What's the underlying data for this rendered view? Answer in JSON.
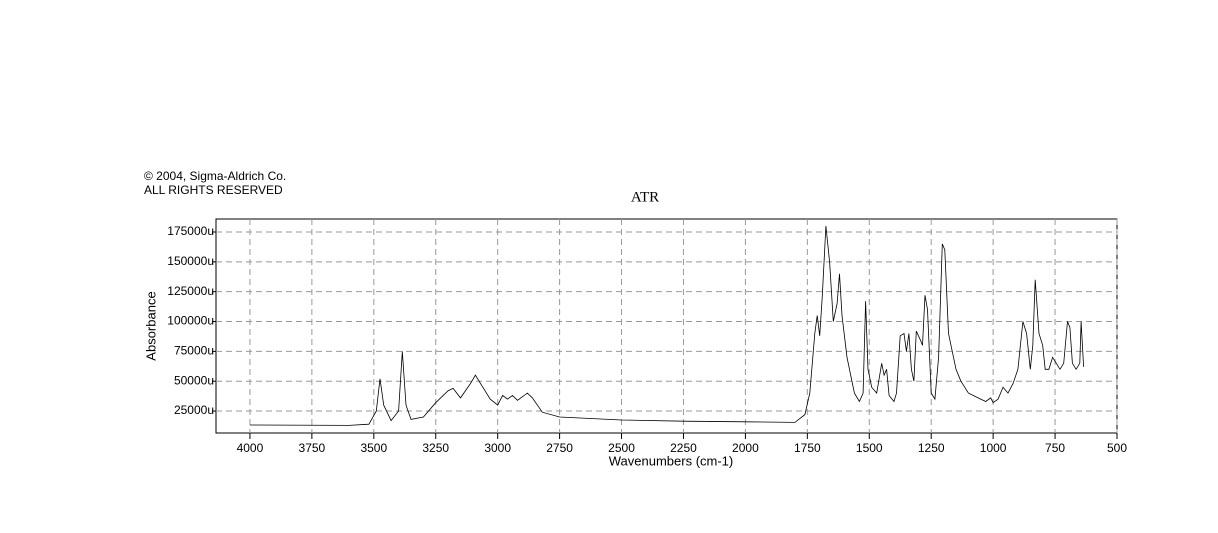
{
  "notice": [
    "© 2004, Sigma-Aldrich Co.",
    "ALL RIGHTS RESERVED"
  ],
  "chart_data": {
    "type": "line",
    "title": "ATR",
    "xlabel": "Wavenumbers (cm-1)",
    "ylabel": "Absorbance",
    "xlim": [
      4137,
      500
    ],
    "ylim": [
      6600,
      185900
    ],
    "xticks": [
      4000,
      3750,
      3500,
      3250,
      3000,
      2750,
      2500,
      2250,
      2000,
      1750,
      1500,
      1250,
      1000,
      750,
      500
    ],
    "yticks": [
      {
        "value": 25000,
        "label": "25000u"
      },
      {
        "value": 50000,
        "label": "50000u"
      },
      {
        "value": 75000,
        "label": "75000u"
      },
      {
        "value": 100000,
        "label": "100000u"
      },
      {
        "value": 125000,
        "label": "125000u"
      },
      {
        "value": 150000,
        "label": "150000u"
      },
      {
        "value": 175000,
        "label": "175000u"
      }
    ],
    "grid": true,
    "series": [
      {
        "color": "#000000",
        "x": [
          4000,
          3600,
          3520,
          3490,
          3475,
          3460,
          3430,
          3400,
          3385,
          3370,
          3350,
          3300,
          3250,
          3200,
          3180,
          3150,
          3110,
          3090,
          3060,
          3030,
          3000,
          2980,
          2960,
          2940,
          2920,
          2880,
          2860,
          2820,
          2750,
          2500,
          2250,
          2000,
          1800,
          1760,
          1740,
          1720,
          1710,
          1700,
          1690,
          1675,
          1660,
          1645,
          1630,
          1620,
          1610,
          1590,
          1560,
          1540,
          1525,
          1515,
          1505,
          1490,
          1470,
          1450,
          1440,
          1430,
          1420,
          1400,
          1390,
          1375,
          1360,
          1350,
          1340,
          1330,
          1320,
          1310,
          1295,
          1285,
          1275,
          1265,
          1250,
          1235,
          1220,
          1205,
          1195,
          1180,
          1170,
          1150,
          1130,
          1100,
          1080,
          1050,
          1030,
          1010,
          1000,
          980,
          960,
          940,
          920,
          900,
          880,
          865,
          850,
          840,
          830,
          815,
          800,
          790,
          775,
          760,
          745,
          730,
          715,
          700,
          690,
          680,
          665,
          650,
          645,
          635
        ],
        "values": [
          13300,
          13000,
          14000,
          25000,
          52000,
          30000,
          17000,
          25000,
          75000,
          30000,
          18000,
          20000,
          32000,
          42000,
          44000,
          36000,
          48000,
          55000,
          45000,
          35000,
          30000,
          38000,
          35000,
          38000,
          34000,
          40000,
          36000,
          24000,
          20000,
          17500,
          16500,
          16000,
          15500,
          22000,
          40000,
          90000,
          105000,
          88000,
          120000,
          180000,
          150000,
          100000,
          115000,
          140000,
          105000,
          70000,
          40000,
          33000,
          40000,
          117000,
          60000,
          45000,
          40000,
          65000,
          55000,
          60000,
          38000,
          33000,
          40000,
          88000,
          90000,
          75000,
          90000,
          60000,
          50000,
          92000,
          85000,
          80000,
          122000,
          110000,
          40000,
          35000,
          70000,
          165000,
          160000,
          90000,
          80000,
          60000,
          50000,
          40000,
          38000,
          35000,
          33000,
          36000,
          32000,
          35000,
          45000,
          40000,
          48000,
          60000,
          100000,
          90000,
          60000,
          80000,
          135000,
          90000,
          80000,
          60000,
          60000,
          70000,
          65000,
          60000,
          65000,
          100000,
          95000,
          65000,
          60000,
          65000,
          100000,
          62000
        ]
      }
    ]
  }
}
